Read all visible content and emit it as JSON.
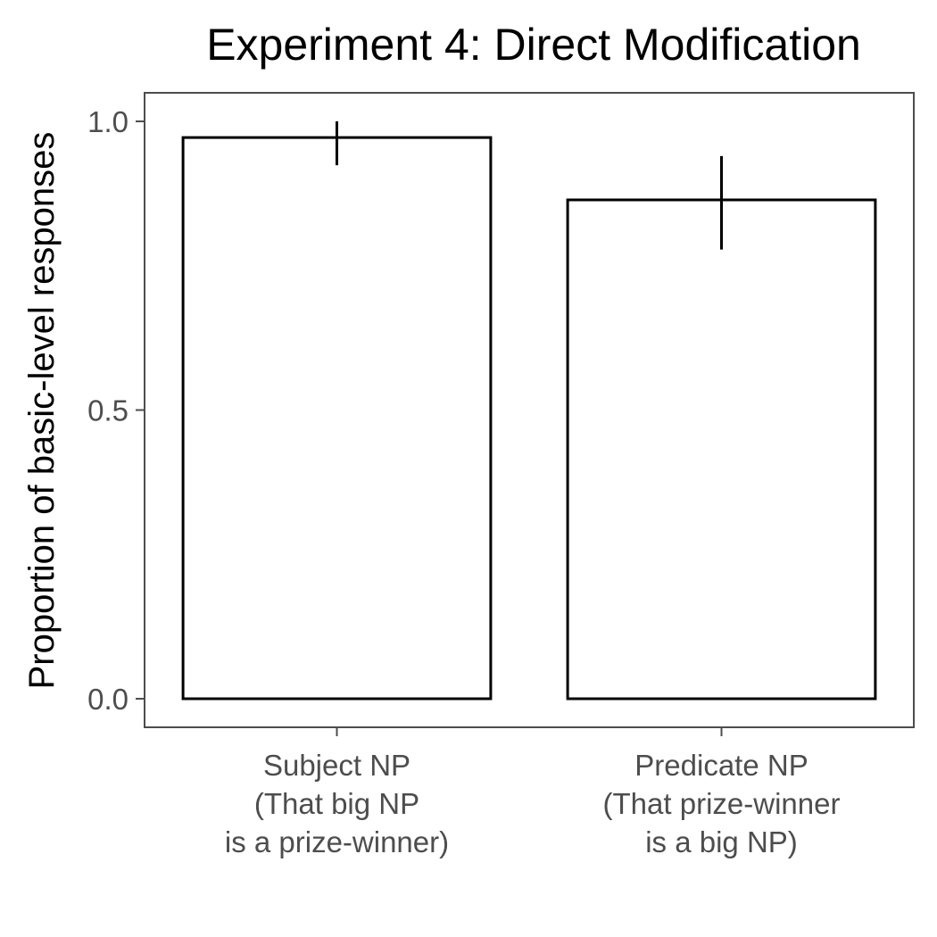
{
  "chart_data": {
    "type": "bar",
    "title": "Experiment 4: Direct Modification",
    "xlabel": "",
    "ylabel": "Proportion of basic-level responses",
    "categories": [
      [
        "Subject NP",
        "(That big NP",
        "is a prize-winner)"
      ],
      [
        "Predicate NP",
        "(That prize-winner",
        "is a big NP)"
      ]
    ],
    "values": [
      0.972,
      0.864
    ],
    "error_bars": [
      {
        "low": 0.924,
        "high": 1.0
      },
      {
        "low": 0.778,
        "high": 0.94
      }
    ],
    "yticks": [
      0.0,
      0.5,
      1.0
    ],
    "ytick_labels": [
      "0.0",
      "0.5",
      "1.0"
    ],
    "ylim": [
      -0.048,
      1.048
    ],
    "grid": false,
    "legend": "none",
    "colors": {
      "bar_fill": "#ffffff",
      "bar_stroke": "#000000",
      "panel_border": "#4d4d4d",
      "tick_text": "#4d4d4d"
    }
  }
}
